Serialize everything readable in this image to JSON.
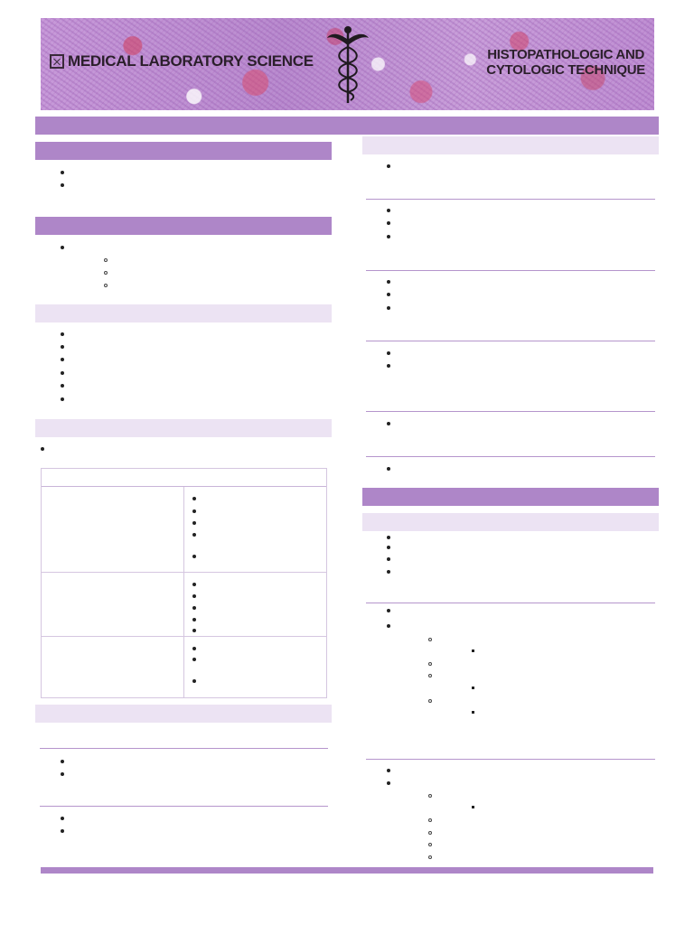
{
  "banner": {
    "left_title": "MEDICAL LABORATORY SCIENCE",
    "right_title_line1": "HISTOPATHOLOGIC AND",
    "right_title_line2": "CYTOLOGIC TECHNIQUE",
    "logo_icon": "framed-cross-logo-icon",
    "emblem_icon": "caduceus-icon",
    "colors": {
      "accent_dark": "#ae86c8",
      "accent_light": "#ece3f3"
    }
  }
}
